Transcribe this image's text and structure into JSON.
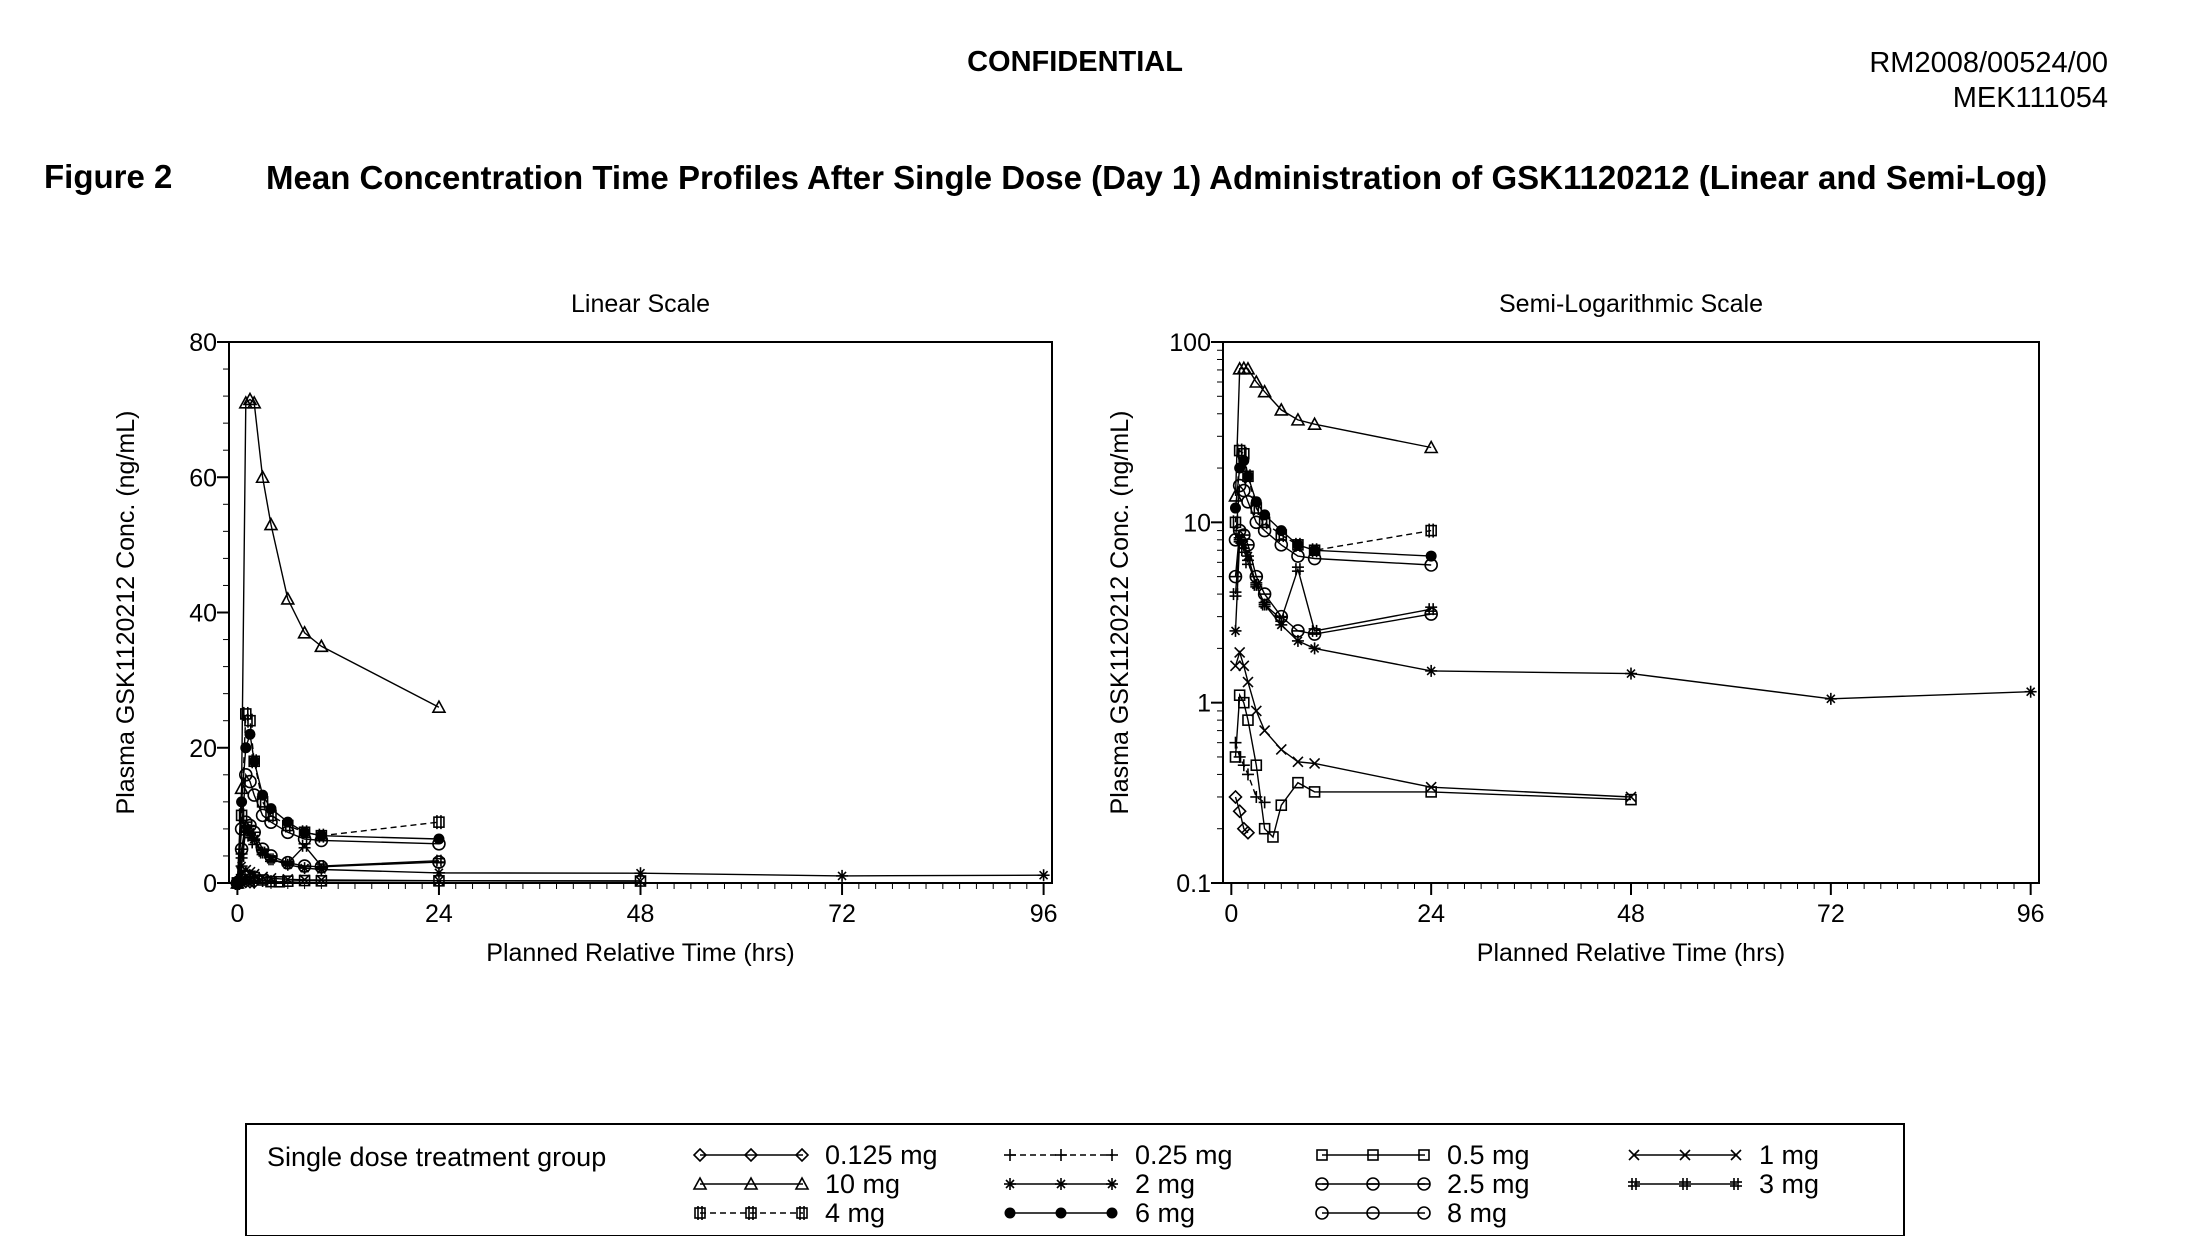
{
  "header": {
    "confidential": "CONFIDENTIAL",
    "doc_number": "RM2008/00524/00",
    "study_id": "MEK111054"
  },
  "figure": {
    "label": "Figure 2",
    "title": "Mean Concentration Time Profiles After Single Dose (Day 1) Administration of GSK1120212 (Linear and Semi-Log)"
  },
  "legend": {
    "title": "Single dose treatment group",
    "entries": [
      {
        "label": "0.125 mg",
        "marker": "diamond",
        "dash": "solid"
      },
      {
        "label": "0.25 mg",
        "marker": "plus",
        "dash": "dashed"
      },
      {
        "label": "0.5 mg",
        "marker": "square",
        "dash": "solid"
      },
      {
        "label": "1 mg",
        "marker": "x",
        "dash": "solid"
      },
      {
        "label": "10 mg",
        "marker": "triangle",
        "dash": "solid"
      },
      {
        "label": "2 mg",
        "marker": "star",
        "dash": "solid"
      },
      {
        "label": "2.5 mg",
        "marker": "circle-bar",
        "dash": "solid"
      },
      {
        "label": "3 mg",
        "marker": "hash",
        "dash": "solid"
      },
      {
        "label": "4 mg",
        "marker": "hashsquare",
        "dash": "dashed"
      },
      {
        "label": "6 mg",
        "marker": "dot",
        "dash": "solid"
      },
      {
        "label": "8 mg",
        "marker": "circle",
        "dash": "solid"
      }
    ]
  },
  "chart_data": [
    {
      "type": "line",
      "title": "Linear Scale",
      "xlabel": "Planned Relative Time (hrs)",
      "ylabel": "Plasma GSK1120212 Conc. (ng/mL)",
      "xlim": [
        -1,
        97
      ],
      "ylim": [
        0,
        80
      ],
      "xticks": [
        "0",
        "24",
        "48",
        "72",
        "96"
      ],
      "yticks": [
        "0",
        "20",
        "40",
        "60",
        "80"
      ],
      "yscale": "linear",
      "series": [
        {
          "name": "0.125 mg",
          "x": [
            0,
            0.5,
            1,
            1.5,
            2
          ],
          "y": [
            0,
            0.3,
            0.25,
            0.2,
            0.19
          ]
        },
        {
          "name": "0.25 mg",
          "x": [
            0,
            0.5,
            1,
            1.5,
            2,
            3,
            4
          ],
          "y": [
            0,
            0.6,
            0.5,
            0.45,
            0.4,
            0.3,
            0.28
          ]
        },
        {
          "name": "0.5 mg",
          "x": [
            0,
            0.5,
            1,
            1.5,
            2,
            3,
            4,
            5,
            6,
            8,
            10,
            24,
            48
          ],
          "y": [
            0,
            0.5,
            1.1,
            1.0,
            0.8,
            0.45,
            0.2,
            0.18,
            0.27,
            0.36,
            0.32,
            0.32,
            0.29
          ]
        },
        {
          "name": "1 mg",
          "x": [
            0,
            0.5,
            1,
            1.5,
            2,
            3,
            4,
            6,
            8,
            10,
            24,
            48
          ],
          "y": [
            0,
            1.6,
            1.9,
            1.6,
            1.3,
            0.9,
            0.7,
            0.55,
            0.47,
            0.46,
            0.34,
            0.3
          ]
        },
        {
          "name": "10 mg",
          "x": [
            0,
            0.5,
            1,
            1.5,
            2,
            3,
            4,
            6,
            8,
            10,
            24
          ],
          "y": [
            0,
            14,
            71,
            71.5,
            71,
            60,
            53,
            42,
            37,
            35,
            26
          ]
        },
        {
          "name": "2 mg",
          "x": [
            0,
            0.5,
            1,
            1.5,
            2,
            3,
            4,
            6,
            8,
            10,
            24,
            48,
            72,
            96
          ],
          "y": [
            0,
            2.5,
            8,
            7.5,
            6.5,
            4.5,
            3.5,
            2.7,
            2.2,
            2,
            1.5,
            1.45,
            1.05,
            1.15
          ]
        },
        {
          "name": "2.5 mg",
          "x": [
            0,
            0.5,
            1,
            1.5,
            2,
            3,
            4,
            6,
            8,
            10,
            24
          ],
          "y": [
            0,
            5,
            9,
            8.5,
            7.5,
            5,
            4,
            3,
            2.5,
            2.4,
            3.1
          ]
        },
        {
          "name": "3 mg",
          "x": [
            0,
            0.5,
            1,
            1.5,
            2,
            3,
            4,
            6,
            8,
            10,
            24
          ],
          "y": [
            0,
            4,
            8,
            7,
            6,
            4.5,
            3.5,
            2.9,
            5.5,
            2.5,
            3.3
          ]
        },
        {
          "name": "4 mg",
          "x": [
            0,
            0.5,
            1,
            1.5,
            2,
            3,
            4,
            6,
            8,
            10,
            24
          ],
          "y": [
            0,
            10,
            25,
            24,
            18,
            12,
            10,
            8.5,
            7.5,
            7,
            9
          ]
        },
        {
          "name": "6 mg",
          "x": [
            0,
            0.5,
            1,
            1.5,
            2,
            3,
            4,
            6,
            8,
            10,
            24
          ],
          "y": [
            0,
            12,
            20,
            22,
            18,
            13,
            11,
            9,
            7.5,
            7,
            6.5
          ]
        },
        {
          "name": "8 mg",
          "x": [
            0,
            0.5,
            1,
            1.5,
            2,
            3,
            4,
            6,
            8,
            10,
            24
          ],
          "y": [
            0,
            8,
            16,
            15,
            13,
            10,
            9,
            7.5,
            6.5,
            6.3,
            5.8
          ]
        }
      ]
    },
    {
      "type": "line",
      "title": "Semi-Logarithmic Scale",
      "xlabel": "Planned Relative Time (hrs)",
      "ylabel": "Plasma GSK1120212 Conc. (ng/mL)",
      "xlim": [
        -1,
        97
      ],
      "ylim": [
        0.1,
        100
      ],
      "xticks": [
        "0",
        "24",
        "48",
        "72",
        "96"
      ],
      "yticks": [
        "0.1",
        "1",
        "10",
        "100"
      ],
      "yscale": "log",
      "series": [
        {
          "name": "0.125 mg",
          "x": [
            0.5,
            1,
            1.5,
            2
          ],
          "y": [
            0.3,
            0.25,
            0.2,
            0.19
          ]
        },
        {
          "name": "0.25 mg",
          "x": [
            0.5,
            1,
            1.5,
            2,
            3,
            4
          ],
          "y": [
            0.6,
            0.5,
            0.45,
            0.4,
            0.3,
            0.28
          ]
        },
        {
          "name": "0.5 mg",
          "x": [
            0.5,
            1,
            1.5,
            2,
            3,
            4,
            5,
            6,
            8,
            10,
            24,
            48
          ],
          "y": [
            0.5,
            1.1,
            1.0,
            0.8,
            0.45,
            0.2,
            0.18,
            0.27,
            0.36,
            0.32,
            0.32,
            0.29
          ]
        },
        {
          "name": "1 mg",
          "x": [
            0.5,
            1,
            1.5,
            2,
            3,
            4,
            6,
            8,
            10,
            24,
            48
          ],
          "y": [
            1.6,
            1.9,
            1.6,
            1.3,
            0.9,
            0.7,
            0.55,
            0.47,
            0.46,
            0.34,
            0.3
          ]
        },
        {
          "name": "10 mg",
          "x": [
            0.5,
            1,
            1.5,
            2,
            3,
            4,
            6,
            8,
            10,
            24
          ],
          "y": [
            14,
            71,
            71.5,
            71,
            60,
            53,
            42,
            37,
            35,
            26
          ]
        },
        {
          "name": "2 mg",
          "x": [
            0.5,
            1,
            1.5,
            2,
            3,
            4,
            6,
            8,
            10,
            24,
            48,
            72,
            96
          ],
          "y": [
            2.5,
            8,
            7.5,
            6.5,
            4.5,
            3.5,
            2.7,
            2.2,
            2,
            1.5,
            1.45,
            1.05,
            1.15
          ]
        },
        {
          "name": "2.5 mg",
          "x": [
            0.5,
            1,
            1.5,
            2,
            3,
            4,
            6,
            8,
            10,
            24
          ],
          "y": [
            5,
            9,
            8.5,
            7.5,
            5,
            4,
            3,
            2.5,
            2.4,
            3.1
          ]
        },
        {
          "name": "3 mg",
          "x": [
            0.5,
            1,
            1.5,
            2,
            3,
            4,
            6,
            8,
            10,
            24
          ],
          "y": [
            4,
            8,
            7,
            6,
            4.5,
            3.5,
            2.9,
            5.5,
            2.5,
            3.3
          ]
        },
        {
          "name": "4 mg",
          "x": [
            0.5,
            1,
            1.5,
            2,
            3,
            4,
            6,
            8,
            10,
            24
          ],
          "y": [
            10,
            25,
            24,
            18,
            12,
            10,
            8.5,
            7.5,
            7,
            9
          ]
        },
        {
          "name": "6 mg",
          "x": [
            0.5,
            1,
            1.5,
            2,
            3,
            4,
            6,
            8,
            10,
            24
          ],
          "y": [
            12,
            20,
            22,
            18,
            13,
            11,
            9,
            7.5,
            7,
            6.5
          ]
        },
        {
          "name": "8 mg",
          "x": [
            0.5,
            1,
            1.5,
            2,
            3,
            4,
            6,
            8,
            10,
            24
          ],
          "y": [
            8,
            16,
            15,
            13,
            10,
            9,
            7.5,
            6.5,
            6.3,
            5.8
          ]
        }
      ]
    }
  ]
}
